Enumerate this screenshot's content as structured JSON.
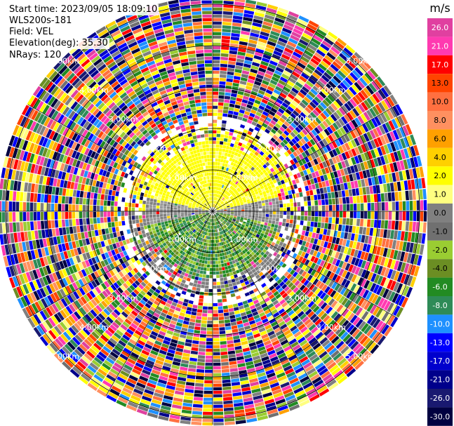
{
  "header": {
    "start_time": "Start time: 2023/09/05 18:09:10",
    "instrument": "WLS200s-181",
    "field": "Field: VEL",
    "elevation": "Elevation(deg): 35.30",
    "nrays": "NRays: 120"
  },
  "rings": {
    "labels": [
      "1.00km",
      "2.00km",
      "3.00km",
      "4.00km",
      "5.00km"
    ]
  },
  "colorbar": {
    "unit": "m/s",
    "ticks": [
      "26.0",
      "21.0",
      "17.0",
      "13.0",
      "10.0",
      "8.0",
      "6.0",
      "4.0",
      "2.0",
      "1.0",
      "0.0",
      "-1.0",
      "-2.0",
      "-4.0",
      "-6.0",
      "-8.0",
      "-10.0",
      "-13.0",
      "-17.0",
      "-21.0",
      "-26.0",
      "-30.0"
    ],
    "colors": [
      "#e040a0",
      "#ff3ab0",
      "#ff0000",
      "#ff4400",
      "#ff7040",
      "#ff9060",
      "#ffa000",
      "#ffd000",
      "#ffff00",
      "#ffff80",
      "#808080",
      "#707070",
      "#9acd32",
      "#6b8e23",
      "#228b22",
      "#2e8b57",
      "#1e90ff",
      "#0000ff",
      "#0000cd",
      "#00008b",
      "#191970",
      "#000040"
    ]
  },
  "chart_data": {
    "type": "heatmap",
    "title": "",
    "nrays": 120,
    "range_ticks_km": [
      1,
      2,
      3,
      4,
      5
    ],
    "field": "VEL",
    "units": "m/s",
    "near_field_pattern": "positive (yellow ~2 m/s) to the north, negative (green ~-2 to -6 m/s) to the south, noise beyond ~2 km"
  }
}
